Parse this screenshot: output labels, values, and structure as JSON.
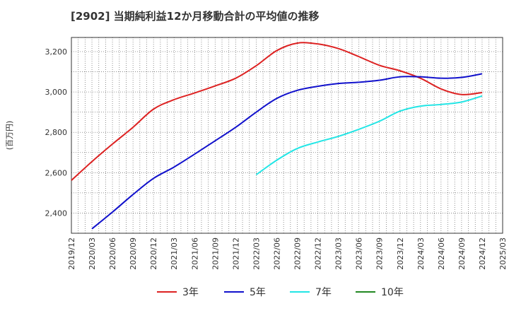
{
  "chart_data": {
    "type": "line",
    "title": "[2902]  当期純利益12か月移動合計の平均値の推移",
    "ylabel": "(百万円)",
    "xlabel": "",
    "ylim": [
      2300,
      3270
    ],
    "yticks": [
      2400,
      2600,
      2800,
      3000,
      3200
    ],
    "ytick_labels": [
      "2,400",
      "2,600",
      "2,800",
      "3,000",
      "3,200"
    ],
    "x_ticks": [
      "2019/12",
      "2020/03",
      "2020/06",
      "2020/09",
      "2020/12",
      "2021/03",
      "2021/06",
      "2021/09",
      "2021/12",
      "2022/03",
      "2022/06",
      "2022/09",
      "2022/12",
      "2023/03",
      "2023/06",
      "2023/09",
      "2023/12",
      "2024/03",
      "2024/06",
      "2024/09",
      "2024/12",
      "2025/03"
    ],
    "grid": true,
    "legend_position": "bottom",
    "series": [
      {
        "name": "3年",
        "color": "#dd2222",
        "points": [
          [
            "2019/12",
            2562
          ],
          [
            "2020/03",
            2655
          ],
          [
            "2020/06",
            2742
          ],
          [
            "2020/09",
            2825
          ],
          [
            "2020/12",
            2915
          ],
          [
            "2021/03",
            2962
          ],
          [
            "2021/06",
            2995
          ],
          [
            "2021/09",
            3030
          ],
          [
            "2021/12",
            3068
          ],
          [
            "2022/03",
            3130
          ],
          [
            "2022/06",
            3205
          ],
          [
            "2022/09",
            3242
          ],
          [
            "2022/12",
            3238
          ],
          [
            "2023/03",
            3215
          ],
          [
            "2023/06",
            3175
          ],
          [
            "2023/09",
            3132
          ],
          [
            "2023/12",
            3105
          ],
          [
            "2024/03",
            3068
          ],
          [
            "2024/06",
            3015
          ],
          [
            "2024/09",
            2987
          ],
          [
            "2024/12",
            2997
          ]
        ]
      },
      {
        "name": "5年",
        "color": "#1111cc",
        "points": [
          [
            "2020/03",
            2322
          ],
          [
            "2020/06",
            2405
          ],
          [
            "2020/09",
            2492
          ],
          [
            "2020/12",
            2572
          ],
          [
            "2021/03",
            2628
          ],
          [
            "2021/06",
            2692
          ],
          [
            "2021/09",
            2758
          ],
          [
            "2021/12",
            2825
          ],
          [
            "2022/03",
            2900
          ],
          [
            "2022/06",
            2968
          ],
          [
            "2022/09",
            3008
          ],
          [
            "2022/12",
            3028
          ],
          [
            "2023/03",
            3042
          ],
          [
            "2023/06",
            3048
          ],
          [
            "2023/09",
            3058
          ],
          [
            "2023/12",
            3075
          ],
          [
            "2024/03",
            3075
          ],
          [
            "2024/06",
            3068
          ],
          [
            "2024/09",
            3072
          ],
          [
            "2024/12",
            3090
          ]
        ]
      },
      {
        "name": "7年",
        "color": "#22e5e5",
        "points": [
          [
            "2022/03",
            2590
          ],
          [
            "2022/06",
            2662
          ],
          [
            "2022/09",
            2720
          ],
          [
            "2022/12",
            2752
          ],
          [
            "2023/03",
            2780
          ],
          [
            "2023/06",
            2815
          ],
          [
            "2023/09",
            2855
          ],
          [
            "2023/12",
            2905
          ],
          [
            "2024/03",
            2930
          ],
          [
            "2024/06",
            2938
          ],
          [
            "2024/09",
            2950
          ],
          [
            "2024/12",
            2980
          ]
        ]
      },
      {
        "name": "10年",
        "color": "#228822",
        "points": []
      }
    ]
  }
}
